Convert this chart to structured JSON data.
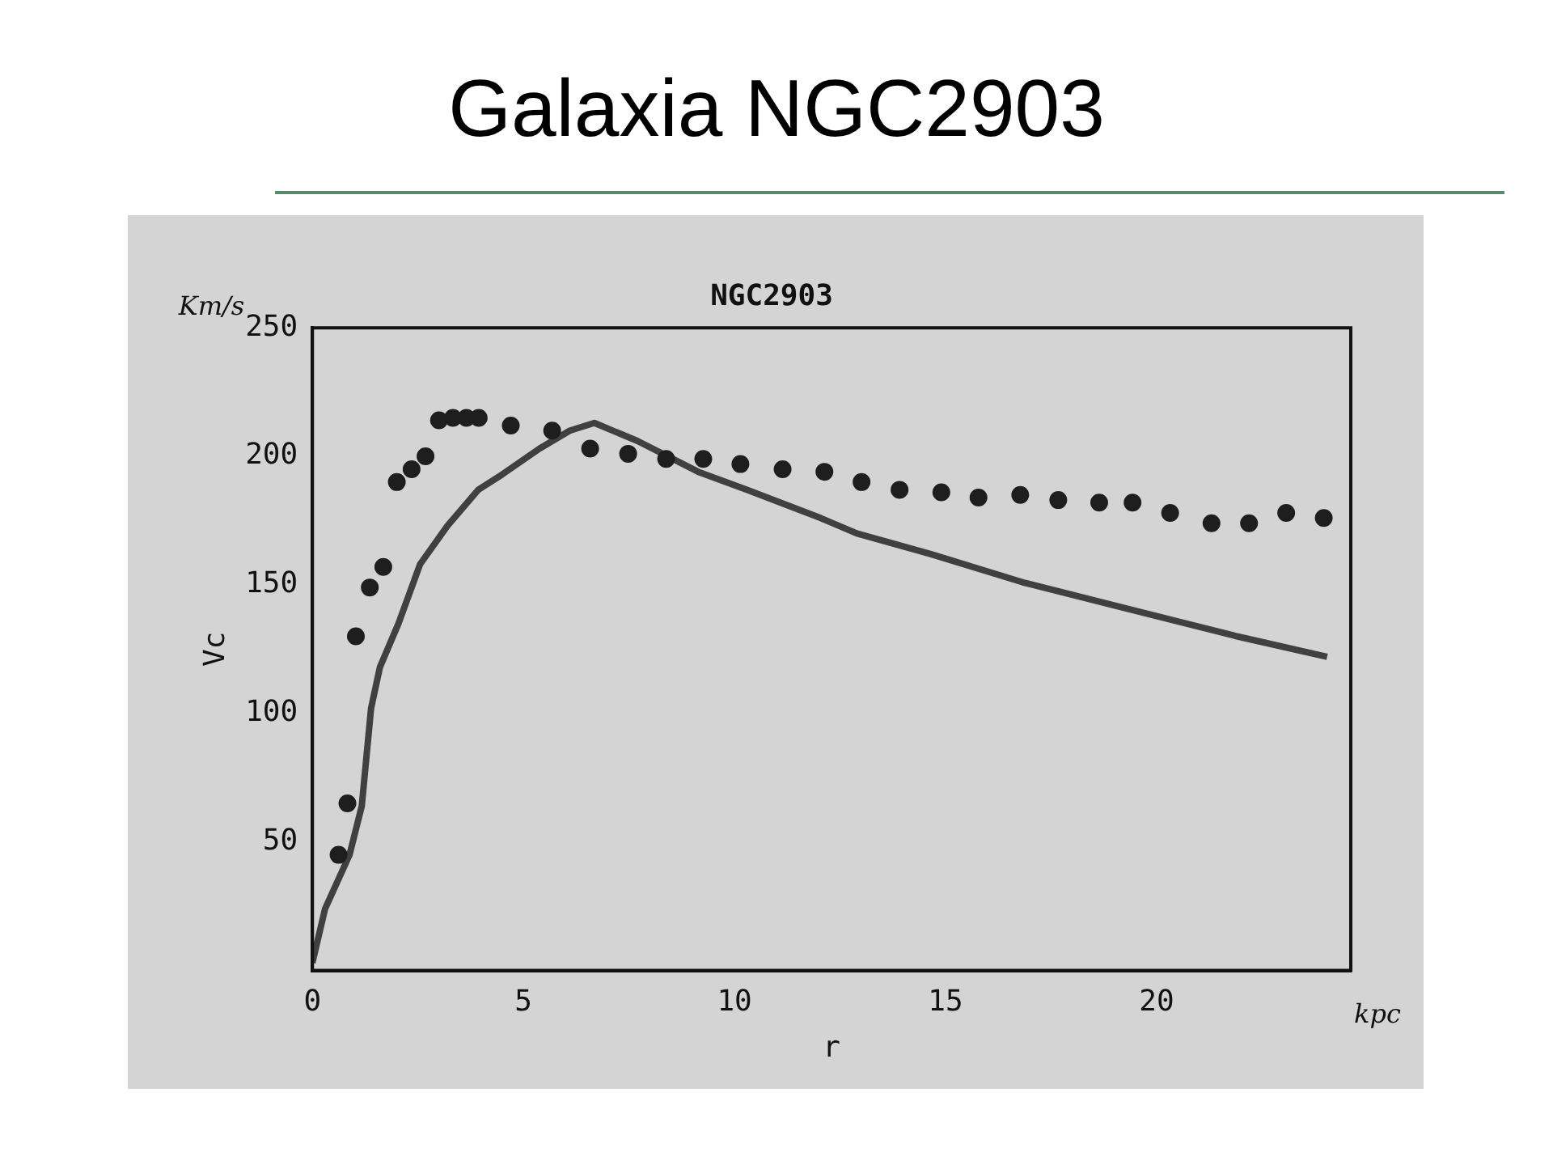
{
  "chart_data": {
    "type": "scatter",
    "title": "Galaxia NGC2903",
    "subtitle": "NGC2903",
    "xlabel": "r",
    "ylabel": "Vc",
    "annotations": [
      "Km/s",
      "kpc"
    ],
    "xlim": [
      0,
      24.6
    ],
    "ylim": [
      0,
      250
    ],
    "xticks": [
      0,
      5,
      10,
      15,
      20
    ],
    "yticks": [
      50,
      100,
      150,
      200,
      250
    ],
    "grid": false,
    "legend": false,
    "series": [
      {
        "type": "scatter",
        "color": "#1e1e1e",
        "marker": "circle",
        "x": [
          0.62,
          0.83,
          1.03,
          1.36,
          1.68,
          2.0,
          2.35,
          2.68,
          3.0,
          3.33,
          3.65,
          3.94,
          4.7,
          5.68,
          6.58,
          7.48,
          8.38,
          9.26,
          10.14,
          11.14,
          12.13,
          13.01,
          13.91,
          14.9,
          15.78,
          16.77,
          17.67,
          18.64,
          19.43,
          20.32,
          21.3,
          22.19,
          23.07,
          23.96
        ],
        "values": [
          45,
          65,
          130,
          149,
          157,
          190,
          195,
          200,
          214,
          215,
          215,
          215,
          212,
          210,
          203,
          201,
          199,
          199,
          197,
          195,
          194,
          190,
          187,
          186,
          184,
          185,
          183,
          182,
          182,
          178,
          174,
          174,
          178,
          176
        ]
      },
      {
        "type": "line",
        "color": "#404040",
        "line_style": "solid",
        "marker": "none",
        "x": [
          0,
          0.3,
          0.88,
          1.17,
          1.39,
          1.6,
          2.04,
          2.55,
          3.2,
          3.93,
          4.5,
          5.38,
          6.1,
          6.68,
          7.7,
          9.14,
          10.3,
          12.04,
          12.9,
          14.65,
          16.83,
          19.0,
          21.9,
          24.04
        ],
        "values": [
          3,
          24,
          45,
          64,
          102,
          118,
          135,
          158,
          173,
          187,
          193,
          203,
          210,
          213,
          206,
          194,
          187,
          176,
          170,
          162,
          151,
          142,
          130,
          122
        ]
      }
    ]
  }
}
